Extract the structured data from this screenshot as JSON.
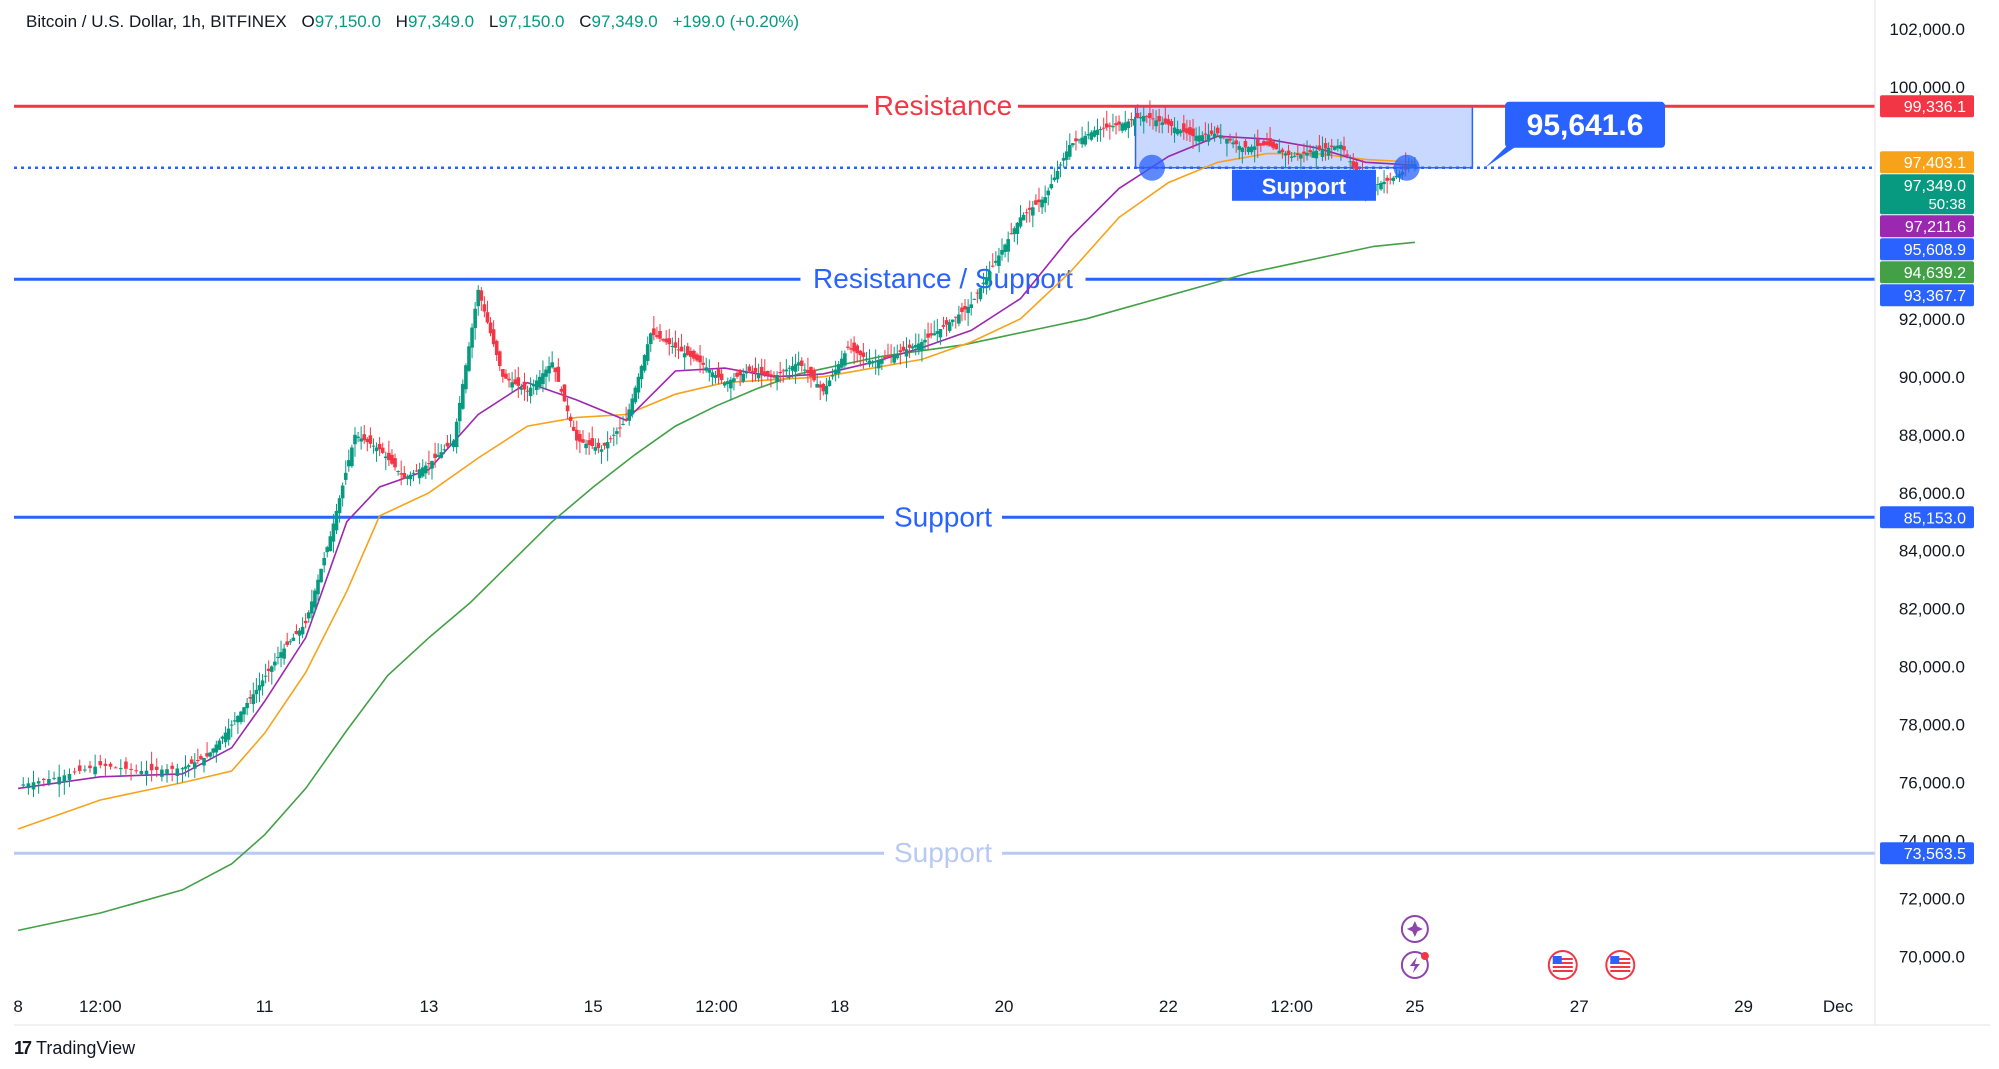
{
  "header": {
    "symbol": "Bitcoin / U.S. Dollar, 1h, BITFINEX",
    "o_label": "O",
    "o_value": "97,150.0",
    "h_label": "H",
    "h_value": "97,349.0",
    "l_label": "L",
    "l_value": "97,150.0",
    "c_label": "C",
    "c_value": "97,349.0",
    "change": "+199.0 (+0.20%)"
  },
  "footer": {
    "brand": "TradingView",
    "brand_mark": "17"
  },
  "colors": {
    "up": "#089981",
    "down": "#f23645",
    "resistance": "#f23645",
    "support": "#2962ff",
    "faded_support": "#b8c9f5",
    "ema_short": "#9c27b0",
    "ema_mid": "#f7a21b",
    "ema_long": "#43a047",
    "zone_fill": "#2962ff"
  },
  "chart_data": {
    "type": "line",
    "title": "Bitcoin / U.S. Dollar, 1h, BITFINEX",
    "y_axis_ticks": [
      70000,
      72000,
      74000,
      76000,
      78000,
      80000,
      82000,
      84000,
      86000,
      88000,
      90000,
      92000,
      100000,
      102000
    ],
    "y_axis_labels": [
      "70,000.0",
      "72,000.0",
      "74,000.0",
      "76,000.0",
      "78,000.0",
      "80,000.0",
      "82,000.0",
      "84,000.0",
      "86,000.0",
      "88,000.0",
      "90,000.0",
      "92,000.0",
      "100,000.0",
      "102,000.0"
    ],
    "x_axis_labels": [
      "8",
      "12:00",
      "11",
      "13",
      "15",
      "12:00",
      "18",
      "20",
      "22",
      "12:00",
      "25",
      "27",
      "29",
      "Dec"
    ],
    "ylim": [
      68500,
      103000
    ],
    "price_series": {
      "name": "BTCUSD",
      "x": [
        8.0,
        8.5,
        9.0,
        9.5,
        10.0,
        10.3,
        10.6,
        10.9,
        11.2,
        11.5,
        11.8,
        12.1,
        12.4,
        12.7,
        13.0,
        13.3,
        13.6,
        13.9,
        14.2,
        14.5,
        14.8,
        15.1,
        15.4,
        15.7,
        16.0,
        16.3,
        16.6,
        16.9,
        17.2,
        17.5,
        17.8,
        18.1,
        18.4,
        18.7,
        19.0,
        19.3,
        19.6,
        19.9,
        20.2,
        20.5,
        20.8,
        21.1,
        21.4,
        21.7,
        22.0,
        22.3,
        22.6,
        22.9,
        23.2,
        23.5,
        23.8,
        24.1,
        24.4,
        24.7,
        25.0
      ],
      "y": [
        75900,
        76200,
        76600,
        76400,
        76500,
        76900,
        78000,
        79200,
        80500,
        81500,
        84500,
        88000,
        87500,
        86500,
        87000,
        87800,
        93000,
        90000,
        89500,
        90500,
        87800,
        87500,
        88500,
        91500,
        91000,
        90500,
        89800,
        90200,
        90000,
        90500,
        89500,
        91000,
        90500,
        90800,
        91200,
        91800,
        92500,
        94000,
        95500,
        96200,
        98000,
        98500,
        98700,
        99000,
        98700,
        98300,
        98400,
        97900,
        98000,
        97600,
        97800,
        98000,
        96500,
        96800,
        97349
      ]
    },
    "ema_short_series": {
      "x": [
        8.0,
        9.0,
        10.0,
        10.6,
        11.0,
        11.5,
        12.0,
        12.4,
        13.0,
        13.6,
        14.2,
        14.8,
        15.4,
        16.0,
        16.6,
        17.2,
        17.8,
        18.4,
        19.0,
        19.6,
        20.2,
        20.8,
        21.4,
        22.0,
        22.6,
        23.2,
        23.8,
        24.4,
        25.0
      ],
      "y": [
        75800,
        76200,
        76300,
        77200,
        78800,
        81000,
        85000,
        86200,
        86800,
        88700,
        89800,
        89200,
        88500,
        90200,
        90300,
        90000,
        90100,
        90500,
        91000,
        91600,
        92700,
        94800,
        96500,
        97600,
        98300,
        98200,
        97900,
        97400,
        97300
      ]
    },
    "ema_mid_series": {
      "x": [
        8.0,
        9.0,
        10.0,
        10.6,
        11.0,
        11.5,
        12.0,
        12.4,
        13.0,
        13.6,
        14.2,
        14.8,
        15.4,
        16.0,
        16.6,
        17.2,
        17.8,
        18.4,
        19.0,
        19.6,
        20.2,
        20.8,
        21.4,
        22.0,
        22.6,
        23.2,
        23.8,
        24.4,
        25.0
      ],
      "y": [
        74400,
        75400,
        76000,
        76400,
        77700,
        79800,
        82600,
        85200,
        86000,
        87200,
        88300,
        88600,
        88700,
        89400,
        89800,
        89900,
        90000,
        90300,
        90600,
        91200,
        92000,
        93600,
        95500,
        96700,
        97400,
        97700,
        97700,
        97500,
        97403
      ]
    },
    "ema_long_series": {
      "x": [
        8.0,
        9.0,
        10.0,
        10.6,
        11.0,
        11.5,
        12.0,
        12.5,
        13.0,
        13.5,
        14.0,
        14.5,
        15.0,
        15.5,
        16.0,
        16.5,
        17.0,
        17.5,
        18.0,
        18.5,
        19.0,
        19.5,
        20.0,
        20.5,
        21.0,
        21.5,
        22.0,
        22.5,
        23.0,
        23.5,
        24.0,
        24.5,
        25.0
      ],
      "y": [
        70900,
        71500,
        72300,
        73200,
        74200,
        75800,
        77800,
        79700,
        81000,
        82200,
        83600,
        85000,
        86200,
        87300,
        88300,
        89000,
        89600,
        90100,
        90400,
        90700,
        90900,
        91100,
        91400,
        91700,
        92000,
        92400,
        92800,
        93200,
        93600,
        93900,
        94200,
        94500,
        94639
      ]
    },
    "horizontal_levels": [
      {
        "label": "Resistance",
        "value": 99336.1,
        "color": "#f23645"
      },
      {
        "label": "Resistance / Support",
        "value": 93367.7,
        "color": "#2962ff"
      },
      {
        "label": "Support",
        "value": 85153.0,
        "color": "#2962ff"
      },
      {
        "label": "Support",
        "value": 73563.5,
        "color": "#b8c9f5"
      },
      {
        "label": "Support",
        "value": 97211.6,
        "color": "#2962ff",
        "dotted": true
      }
    ],
    "zone": {
      "x_start": 21.6,
      "x_end": 25.7,
      "y_low": 97211.6,
      "y_high": 99336.1,
      "label": "Support"
    },
    "touch_points": [
      {
        "x": 21.8,
        "y": 97211.6
      },
      {
        "x": 24.9,
        "y": 97211.6
      }
    ],
    "callout": {
      "value": "95,641.6",
      "x": 26.0,
      "y": 97211.6
    },
    "price_tags": [
      {
        "text": "99,336.1",
        "value": 99336.1,
        "bg": "#f23645"
      },
      {
        "text": "97,403.1",
        "value": 97403.1,
        "bg": "#f7a21b"
      },
      {
        "text": "97,349.0",
        "sub": "50:38",
        "value": 97349.0,
        "bg": "#089981"
      },
      {
        "text": "97,211.6",
        "value": 97211.6,
        "bg": "#9c27b0"
      },
      {
        "text": "95,608.9",
        "value": 95608.9,
        "bg": "#2962ff"
      },
      {
        "text": "94,639.2",
        "value": 94639.2,
        "bg": "#43a047"
      },
      {
        "text": "93,367.7",
        "value": 93367.7,
        "bg": "#2962ff"
      },
      {
        "text": "85,153.0",
        "value": 85153.0,
        "bg": "#2962ff"
      },
      {
        "text": "73,563.5",
        "value": 73563.5,
        "bg": "#2962ff"
      }
    ],
    "event_icons": [
      {
        "name": "sparkle-icon",
        "x": 25.0,
        "row": 0
      },
      {
        "name": "lightning-icon",
        "x": 25.0,
        "row": 1
      },
      {
        "name": "us-flag-icon",
        "x": 26.8,
        "row": 1
      },
      {
        "name": "us-flag-icon",
        "x": 27.5,
        "row": 1
      }
    ]
  }
}
